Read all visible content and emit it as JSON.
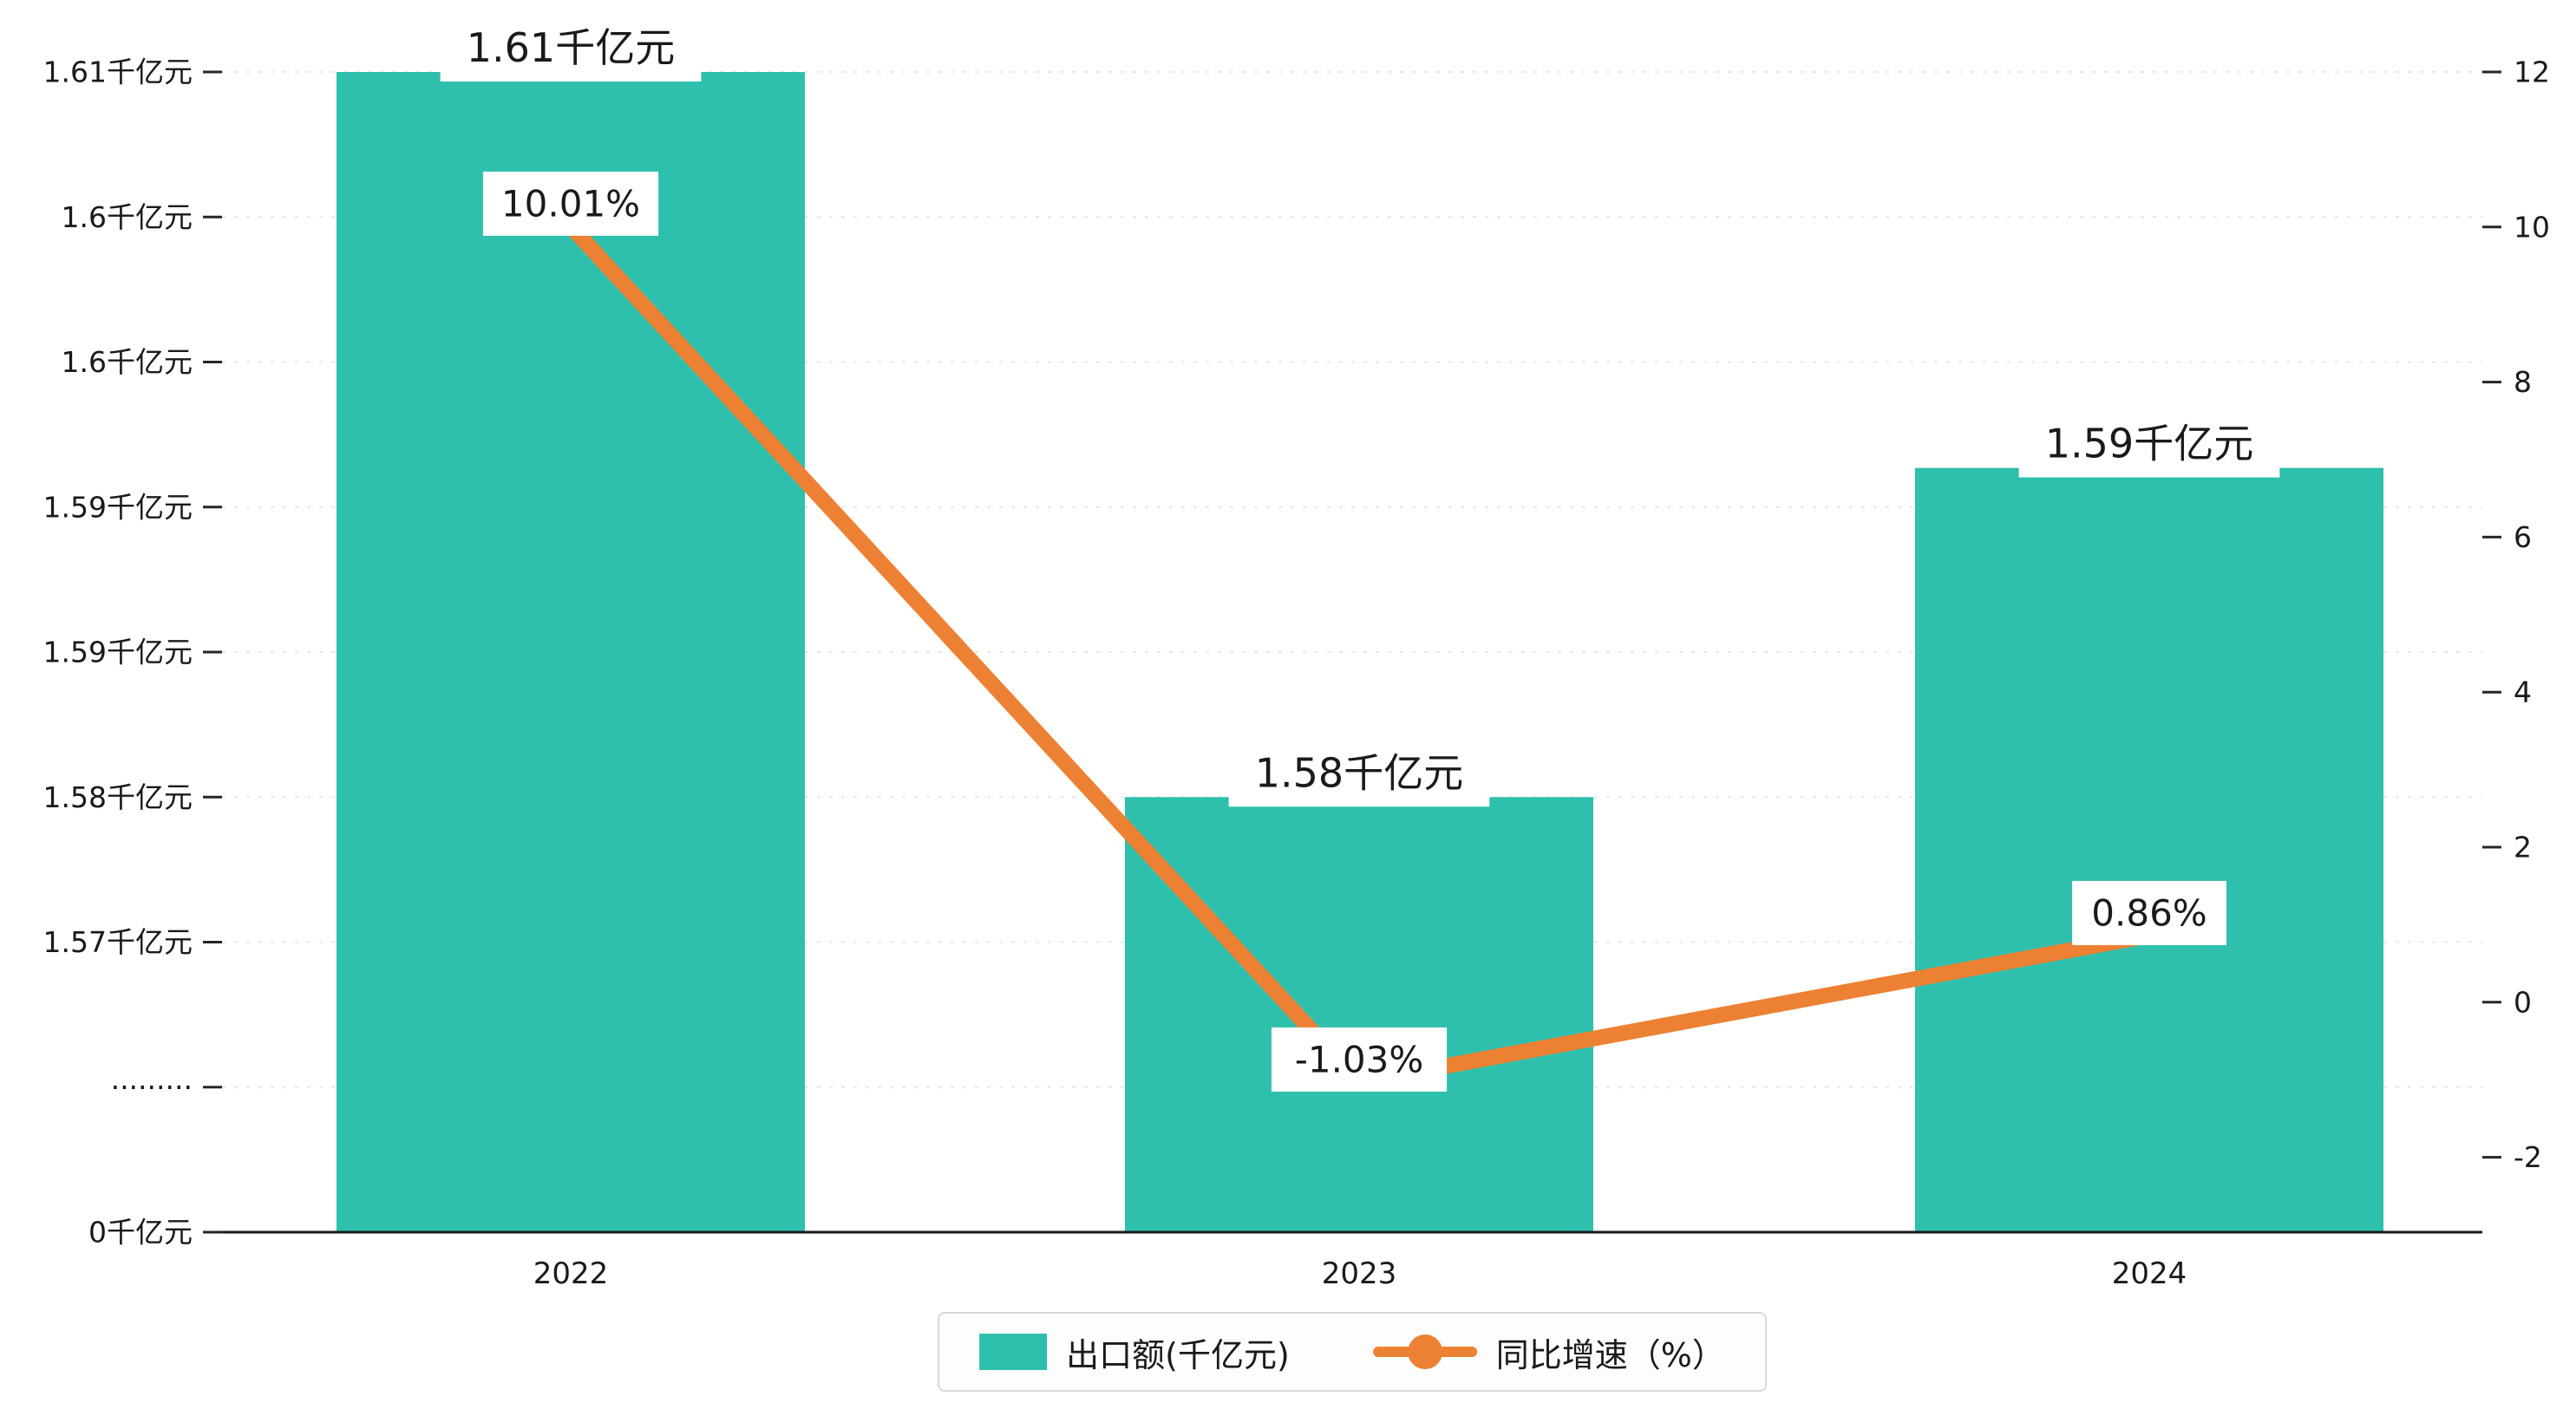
{
  "chart_data": {
    "type": "bar",
    "combo": "bar+line",
    "title": "",
    "categories": [
      "2022",
      "2023",
      "2024"
    ],
    "series": [
      {
        "name": "出口额(千亿元)",
        "type": "bar",
        "unit": "千亿元",
        "values": [
          1.61,
          1.58,
          1.59
        ],
        "value_labels": [
          "1.61千亿元",
          "1.58千亿元",
          "1.59千亿元"
        ],
        "color": "#2ec0ac"
      },
      {
        "name": "同比增速（%）",
        "type": "line",
        "unit": "%",
        "values": [
          10.01,
          -1.03,
          0.86
        ],
        "value_labels": [
          "10.01%",
          "-1.03%",
          "0.86%"
        ],
        "color": "#ed8133"
      }
    ],
    "left_axis": {
      "tick_labels": [
        "1.61千亿元",
        "1.6千亿元",
        "1.6千亿元",
        "1.59千亿元",
        "1.59千亿元",
        "1.58千亿元",
        "1.57千亿元",
        "·········",
        "0千亿元"
      ],
      "broken_axis": true
    },
    "right_axis": {
      "tick_labels": [
        "12",
        "10",
        "8",
        "6",
        "4",
        "2",
        "0",
        "-2"
      ],
      "max": 12,
      "min": -2,
      "ticks": [
        12,
        10,
        8,
        6,
        4,
        2,
        0,
        -2
      ]
    },
    "legend_position": "bottom",
    "grid": "horizontal-dashed",
    "layout_hints": {
      "bar_top_tick_index": [
        0,
        5,
        2.73
      ]
    },
    "colors": {
      "bar": "#2ec0ac",
      "line": "#ed8133",
      "axis_text": "#1a1a1a",
      "gridline": "#e7e7e7"
    }
  },
  "legend": {
    "bar_label": "出口额(千亿元)",
    "line_label": "同比增速（%）"
  }
}
